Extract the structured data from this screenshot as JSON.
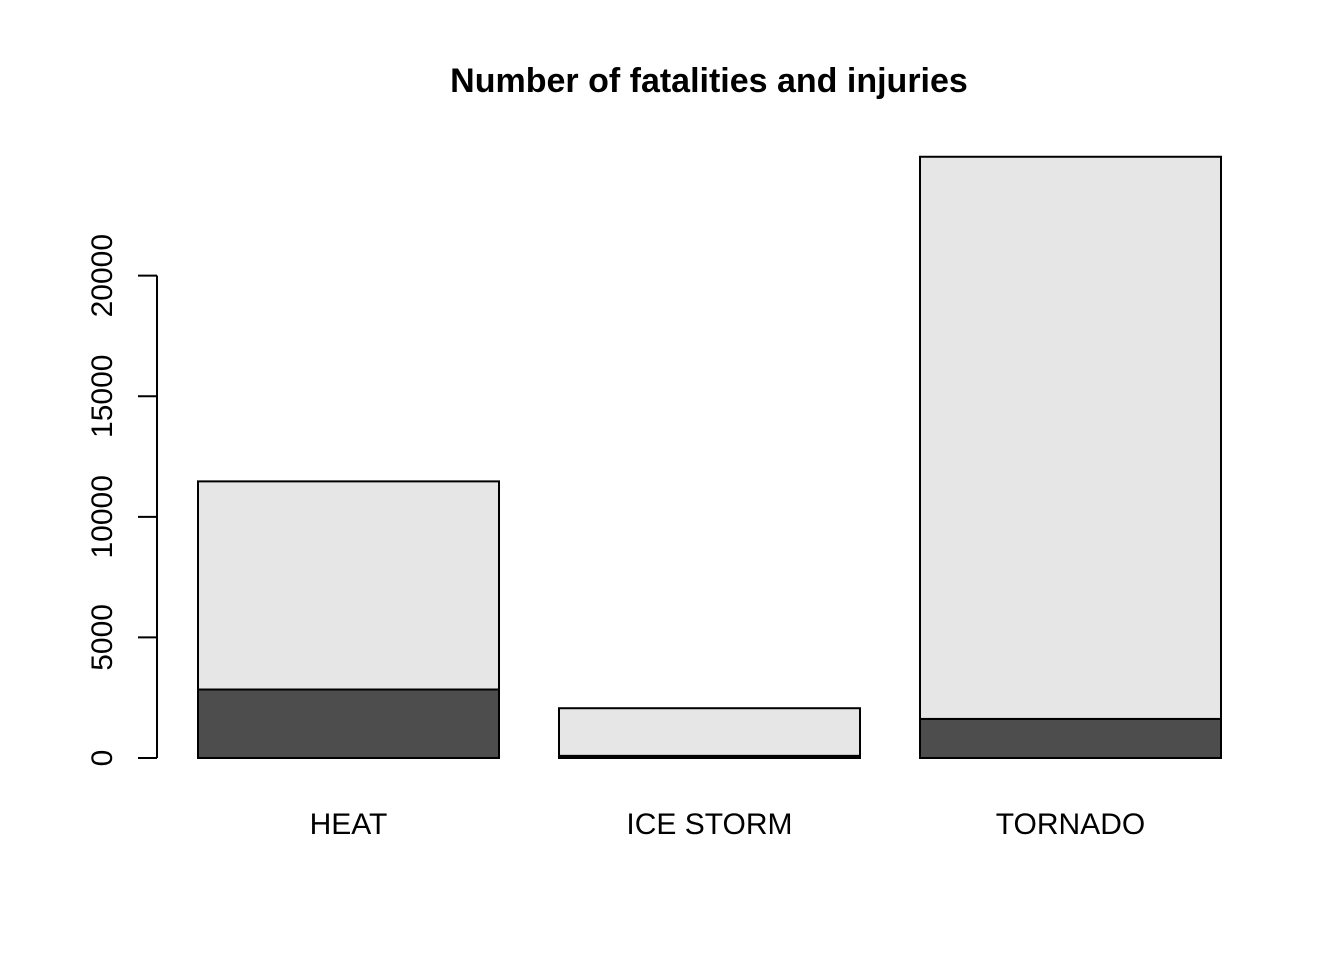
{
  "chart_data": {
    "type": "bar",
    "stacked": true,
    "title": "Number of fatalities and injuries",
    "xlabel": "",
    "ylabel": "",
    "categories": [
      "HEAT",
      "ICE STORM",
      "TORNADO"
    ],
    "series": [
      {
        "values": [
          2840,
          89,
          1620
        ],
        "color": "#4d4d4d"
      },
      {
        "values": [
          8630,
          1975,
          23310
        ],
        "color": "#e6e6e6"
      }
    ],
    "yticks": [
      0,
      5000,
      10000,
      15000,
      20000
    ],
    "ytick_labels": [
      "0",
      "5000",
      "10000",
      "15000",
      "20000"
    ],
    "ylim": [
      0,
      24930
    ],
    "grid": false,
    "legend": "none"
  }
}
